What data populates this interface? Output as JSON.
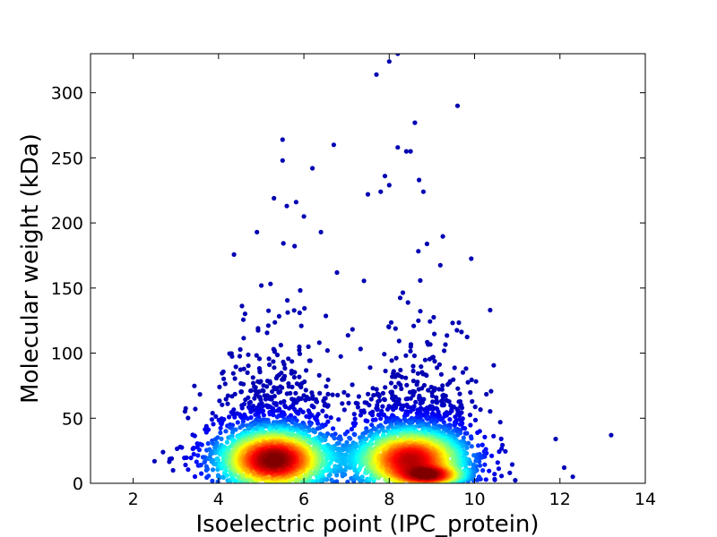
{
  "chart_data": {
    "type": "scatter",
    "title": "",
    "xlabel": "Isoelectric point (IPC_protein)",
    "ylabel": "Molecular weight (kDa)",
    "xlim": [
      1,
      14
    ],
    "ylim": [
      0,
      330
    ],
    "x_ticks": [
      2,
      4,
      6,
      8,
      10,
      12,
      14
    ],
    "y_ticks": [
      0,
      50,
      100,
      150,
      200,
      250,
      300
    ],
    "grid": false,
    "legend": "none",
    "colormap": "jet (point density)",
    "density_clusters": [
      {
        "x_center": 5.3,
        "y_center": 18,
        "x_spread": 0.75,
        "y_spread": 14,
        "weight": 0.42
      },
      {
        "x_center": 8.5,
        "y_center": 18,
        "x_spread": 0.75,
        "y_spread": 14,
        "weight": 0.38
      },
      {
        "x_center": 9.0,
        "y_center": 6,
        "x_spread": 0.45,
        "y_spread": 4,
        "weight": 0.2
      }
    ],
    "outliers": [
      {
        "x": 2.5,
        "y": 17
      },
      {
        "x": 2.7,
        "y": 24
      },
      {
        "x": 2.9,
        "y": 19
      },
      {
        "x": 3.1,
        "y": 28
      },
      {
        "x": 5.5,
        "y": 264
      },
      {
        "x": 5.5,
        "y": 248
      },
      {
        "x": 6.2,
        "y": 242
      },
      {
        "x": 6.7,
        "y": 260
      },
      {
        "x": 5.3,
        "y": 219
      },
      {
        "x": 5.6,
        "y": 213
      },
      {
        "x": 6.0,
        "y": 205
      },
      {
        "x": 4.9,
        "y": 193
      },
      {
        "x": 6.4,
        "y": 193
      },
      {
        "x": 7.7,
        "y": 314
      },
      {
        "x": 8.0,
        "y": 324
      },
      {
        "x": 8.2,
        "y": 330
      },
      {
        "x": 9.6,
        "y": 290
      },
      {
        "x": 8.6,
        "y": 277
      },
      {
        "x": 8.2,
        "y": 258
      },
      {
        "x": 8.4,
        "y": 255
      },
      {
        "x": 7.9,
        "y": 236
      },
      {
        "x": 8.5,
        "y": 255
      },
      {
        "x": 8.7,
        "y": 233
      },
      {
        "x": 7.5,
        "y": 222
      },
      {
        "x": 7.8,
        "y": 224
      },
      {
        "x": 8.0,
        "y": 229
      },
      {
        "x": 8.8,
        "y": 224
      },
      {
        "x": 13.2,
        "y": 37
      },
      {
        "x": 12.3,
        "y": 5
      },
      {
        "x": 11.9,
        "y": 34
      },
      {
        "x": 12.1,
        "y": 12
      }
    ]
  }
}
